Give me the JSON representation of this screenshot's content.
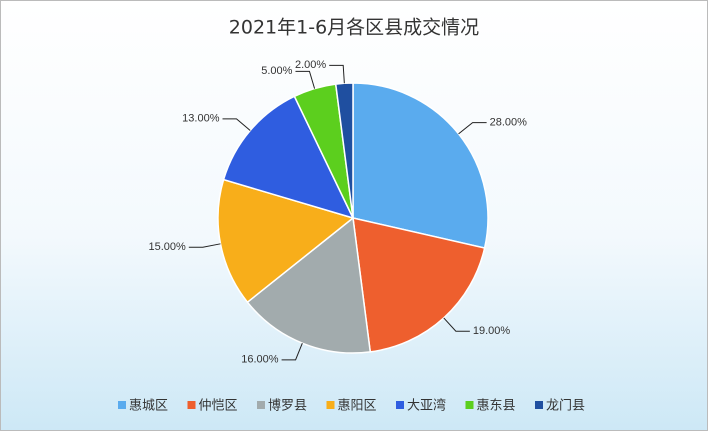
{
  "chart_data": {
    "type": "pie",
    "title": "2021年1-6月各区县成交情况",
    "categories": [
      "惠城区",
      "仲恺区",
      "博罗县",
      "惠阳区",
      "大亚湾",
      "惠东县",
      "龙门县"
    ],
    "values": [
      28,
      19,
      16,
      15,
      13,
      5,
      2
    ],
    "value_labels": [
      "28.00%",
      "19.00%",
      "16.00%",
      "15.00%",
      "13.00%",
      "5.00%",
      "2.00%"
    ],
    "colors": [
      "#5aabee",
      "#ee5f2e",
      "#a2abad",
      "#f8ae1a",
      "#2f5de0",
      "#5ccf1e",
      "#1f4fa0"
    ],
    "legend": "bottom"
  }
}
